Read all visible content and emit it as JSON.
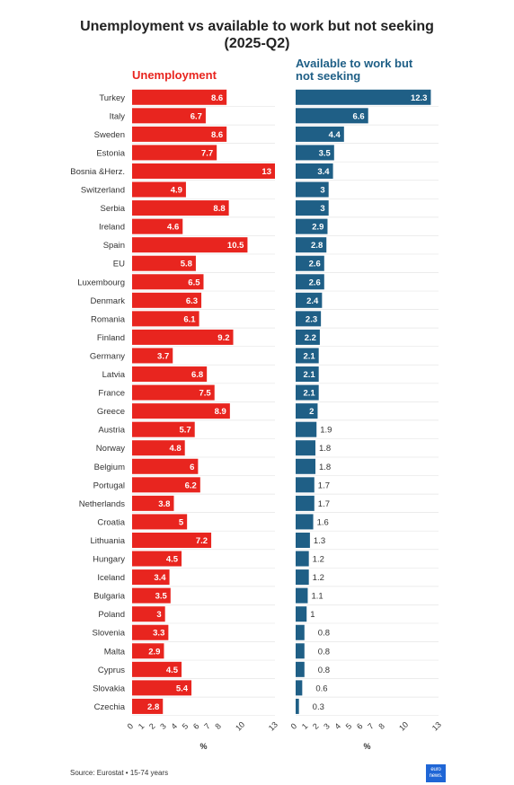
{
  "title_line1": "Unemployment vs available to work but not seeking",
  "title_line2": "(2025-Q2)",
  "source": "Source: Eurostat • 15-74 years",
  "logo": {
    "line1": "euro",
    "line2": "news."
  },
  "colors": {
    "unemployment": "#e8251f",
    "available": "#1f5f86",
    "grid": "#e6e6e6",
    "label": "#333333"
  },
  "chart_data": [
    {
      "type": "bar",
      "orientation": "horizontal",
      "title": "Unemployment",
      "xlabel": "%",
      "xlim": [
        0,
        13
      ],
      "ticks": [
        0,
        1,
        2,
        3,
        4,
        5,
        6,
        7,
        8,
        10,
        13
      ],
      "categories": [
        "Turkey",
        "Italy",
        "Sweden",
        "Estonia",
        "Bosnia &Herz.",
        "Switzerland",
        "Serbia",
        "Ireland",
        "Spain",
        "EU",
        "Luxembourg",
        "Denmark",
        "Romania",
        "Finland",
        "Germany",
        "Latvia",
        "France",
        "Greece",
        "Austria",
        "Norway",
        "Belgium",
        "Portugal",
        "Netherlands",
        "Croatia",
        "Lithuania",
        "Hungary",
        "Iceland",
        "Bulgaria",
        "Poland",
        "Slovenia",
        "Malta",
        "Cyprus",
        "Slovakia",
        "Czechia"
      ],
      "values": [
        8.6,
        6.7,
        8.6,
        7.7,
        13,
        4.9,
        8.8,
        4.6,
        10.5,
        5.8,
        6.5,
        6.3,
        6.1,
        9.2,
        3.7,
        6.8,
        7.5,
        8.9,
        5.7,
        4.8,
        6,
        6.2,
        3.8,
        5,
        7.2,
        4.5,
        3.4,
        3.5,
        3,
        3.3,
        2.9,
        4.5,
        5.4,
        2.8
      ]
    },
    {
      "type": "bar",
      "orientation": "horizontal",
      "title": "Available to work but not seeking",
      "xlabel": "%",
      "xlim": [
        0,
        13
      ],
      "ticks": [
        0,
        1,
        2,
        3,
        4,
        5,
        6,
        7,
        8,
        10,
        13
      ],
      "categories": [
        "Turkey",
        "Italy",
        "Sweden",
        "Estonia",
        "Bosnia &Herz.",
        "Switzerland",
        "Serbia",
        "Ireland",
        "Spain",
        "EU",
        "Luxembourg",
        "Denmark",
        "Romania",
        "Finland",
        "Germany",
        "Latvia",
        "France",
        "Greece",
        "Austria",
        "Norway",
        "Belgium",
        "Portugal",
        "Netherlands",
        "Croatia",
        "Lithuania",
        "Hungary",
        "Iceland",
        "Bulgaria",
        "Poland",
        "Slovenia",
        "Malta",
        "Cyprus",
        "Slovakia",
        "Czechia"
      ],
      "values": [
        12.3,
        6.6,
        4.4,
        3.5,
        3.4,
        3,
        3,
        2.9,
        2.8,
        2.6,
        2.6,
        2.4,
        2.3,
        2.2,
        2.1,
        2.1,
        2.1,
        2,
        1.9,
        1.8,
        1.8,
        1.7,
        1.7,
        1.6,
        1.3,
        1.2,
        1.2,
        1.1,
        1,
        0.8,
        0.8,
        0.8,
        0.6,
        0.3
      ]
    }
  ]
}
